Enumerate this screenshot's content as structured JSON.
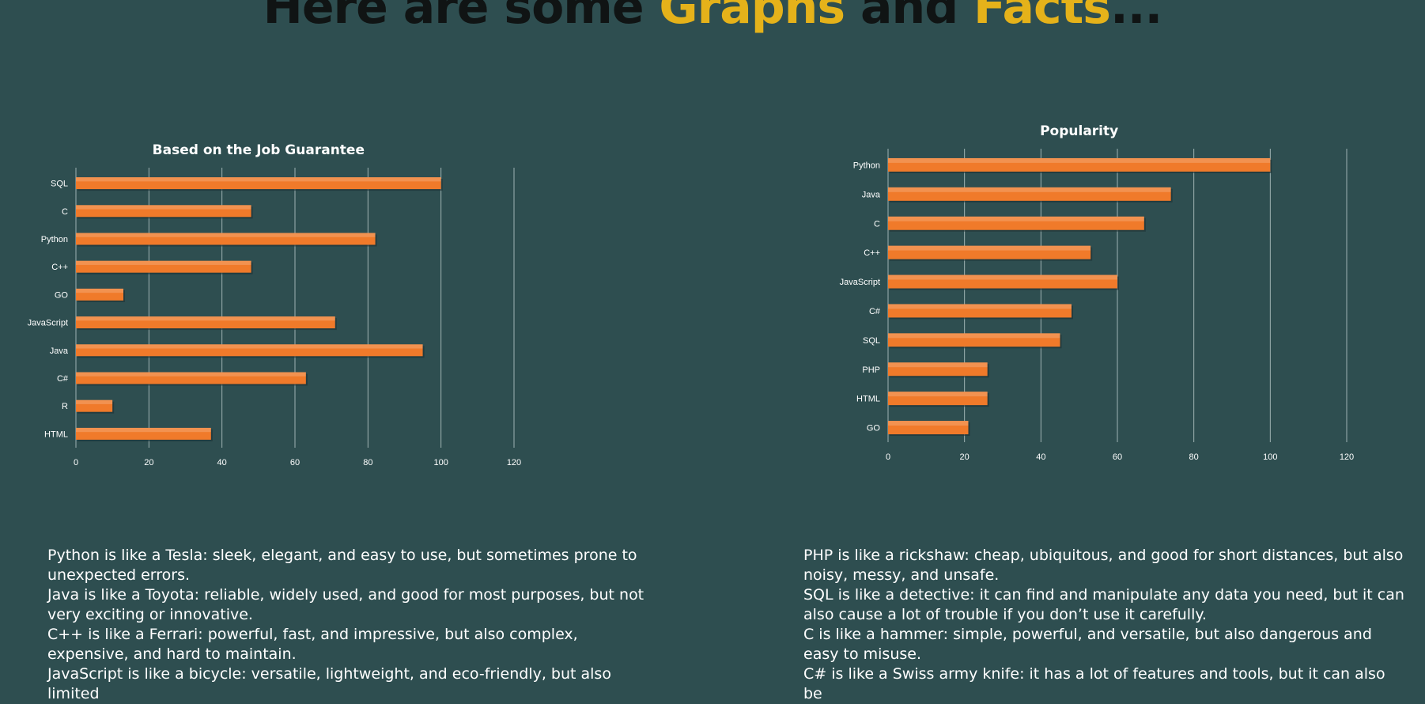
{
  "heading": {
    "part1": "Here are some ",
    "part2": "Graphs",
    "part3": " and ",
    "part4": "Facts",
    "part5": "..."
  },
  "colors": {
    "background": "#2e4e50",
    "bar": "#f07a2a",
    "highlight": "#e5b21a",
    "heading_dark": "#101414",
    "text": "#ffffff",
    "grid": "#9fb3b3"
  },
  "chart_data": [
    {
      "type": "bar",
      "orientation": "horizontal",
      "title": "Based on the Job Guarantee",
      "categories": [
        "SQL",
        "C",
        "Python",
        "C++",
        "GO",
        "JavaScript",
        "Java",
        "C#",
        "R",
        "HTML"
      ],
      "values": [
        100,
        48,
        82,
        48,
        13,
        71,
        95,
        63,
        10,
        37
      ],
      "xlim": [
        0,
        120
      ],
      "xticks": [
        0,
        20,
        40,
        60,
        80,
        100,
        120
      ],
      "grid": true,
      "legend": "none"
    },
    {
      "type": "bar",
      "orientation": "horizontal",
      "title": "Popularity",
      "categories": [
        "Python",
        "Java",
        "C",
        "C++",
        "JavaScript",
        "C#",
        "SQL",
        "PHP",
        "HTML",
        "GO"
      ],
      "values": [
        100,
        74,
        67,
        53,
        60,
        48,
        45,
        26,
        26,
        21
      ],
      "xlim": [
        0,
        120
      ],
      "xticks": [
        0,
        20,
        40,
        60,
        80,
        100,
        120
      ],
      "grid": true,
      "legend": "none"
    }
  ],
  "facts_left": [
    "Python is like a Tesla: sleek, elegant, and easy to use, but sometimes prone to unexpected errors.",
    "Java is like a Toyota: reliable, widely used, and good for most purposes, but not very exciting or innovative.",
    "C++ is like a Ferrari: powerful, fast, and impressive, but also complex, expensive, and hard to maintain.",
    "JavaScript is like a bicycle: versatile, lightweight, and eco-friendly, but also limited"
  ],
  "facts_right": [
    "PHP is like a rickshaw: cheap, ubiquitous, and good for short distances, but also noisy, messy, and unsafe.",
    "SQL is like a detective: it can find and manipulate any data you need, but it can also cause a lot of trouble if you don’t use it carefully.",
    "C is like a hammer: simple, powerful, and versatile, but also dangerous and easy to misuse.",
    "C# is like a Swiss army knife: it has a lot of features and tools, but it can also be"
  ]
}
